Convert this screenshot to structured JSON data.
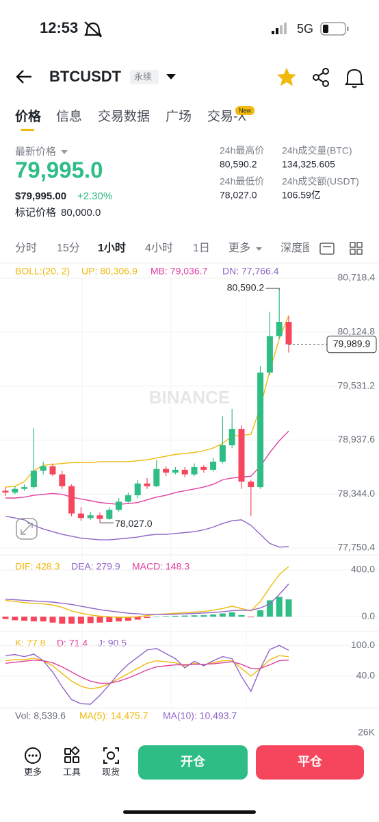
{
  "status": {
    "time": "12:53",
    "network": "5G"
  },
  "header": {
    "symbol": "BTCUSDT",
    "contract": "永续"
  },
  "tabs": {
    "items": [
      "价格",
      "信息",
      "交易数据",
      "广场",
      "交易-X"
    ],
    "badge": "New"
  },
  "ticker": {
    "last_label": "最新价格",
    "last": "79,995.0",
    "last_usd": "$79,995.00",
    "change": "+2.30%",
    "mark_label": "标记价格",
    "mark": "80,000.0",
    "stats": [
      [
        "24h最高价",
        "80,590.2"
      ],
      [
        "24h成交量(BTC)",
        "134,325.605"
      ],
      [
        "24h最低价",
        "78,027.0"
      ],
      [
        "24h成交额(USDT)",
        "106.59亿"
      ]
    ]
  },
  "intervals": [
    "分时",
    "15分",
    "1小时",
    "4小时",
    "1日",
    "更多",
    "深度图"
  ],
  "kline": {
    "type": "candlestick",
    "legend": [
      "BOLL:(20, 2)",
      "UP: 80,306.9",
      "MB: 79,036.7",
      "DN: 77,766.4"
    ],
    "ylim": [
      77750.4,
      80718.4
    ],
    "yticks": [
      {
        "value": 80718.4,
        "label": "80,718.4"
      },
      {
        "value": 80124.8,
        "label": "80,124.8"
      },
      {
        "value": 79531.2,
        "label": "79,531.2"
      },
      {
        "value": 78937.6,
        "label": "78,937.6"
      },
      {
        "value": 78344.0,
        "label": "78,344.0"
      },
      {
        "value": 77750.4,
        "label": "77,750.4"
      }
    ],
    "up_color": "#2ebd85",
    "down_color": "#f6465d",
    "open": [
      78380,
      78360,
      78400,
      78420,
      78600,
      78650,
      78560,
      78430,
      78130,
      78080,
      78110,
      78070,
      78170,
      78260,
      78330,
      78460,
      78430,
      78620,
      78580,
      78610,
      78560,
      78640,
      78610,
      78700,
      78880,
      79060,
      78480,
      78420,
      79680,
      80080,
      80236
    ],
    "high": [
      78420,
      78430,
      78450,
      79070,
      78700,
      78680,
      78600,
      78450,
      78200,
      78150,
      78140,
      78200,
      78300,
      78360,
      78500,
      78520,
      78720,
      78650,
      78640,
      78640,
      78680,
      78660,
      78740,
      79200,
      79280,
      79100,
      78500,
      79750,
      80350,
      80590.2,
      80300
    ],
    "low": [
      78320,
      78340,
      78380,
      78400,
      78560,
      78540,
      78400,
      78100,
      78050,
      78060,
      78027,
      78060,
      78150,
      78240,
      78300,
      78400,
      78420,
      78540,
      78560,
      78530,
      78540,
      78580,
      78590,
      78680,
      78850,
      78400,
      78100,
      78400,
      79650,
      80050,
      79900
    ],
    "close": [
      78360,
      78400,
      78420,
      78600,
      78650,
      78560,
      78430,
      78130,
      78080,
      78110,
      78070,
      78170,
      78260,
      78330,
      78460,
      78430,
      78620,
      78580,
      78610,
      78560,
      78640,
      78610,
      78700,
      78880,
      79060,
      78480,
      78420,
      79680,
      80080,
      80236,
      79989.9
    ],
    "series": [
      {
        "color": "#f0b90b",
        "values": [
          78420,
          78430,
          78480,
          78600,
          78660,
          78670,
          78680,
          78690,
          78690,
          78690,
          78700,
          78700,
          78700,
          78700,
          78710,
          78720,
          78740,
          78760,
          78780,
          78790,
          78800,
          78820,
          78850,
          78900,
          78980,
          78990,
          79000,
          79300,
          79700,
          80050,
          80306.9
        ]
      },
      {
        "color": "#e040a0",
        "values": [
          78300,
          78300,
          78310,
          78330,
          78340,
          78350,
          78340,
          78310,
          78290,
          78270,
          78250,
          78240,
          78230,
          78240,
          78250,
          78280,
          78310,
          78330,
          78360,
          78380,
          78400,
          78420,
          78450,
          78500,
          78520,
          78530,
          78540,
          78650,
          78800,
          78930,
          79036.7
        ]
      },
      {
        "color": "#8f64c8",
        "values": [
          78100,
          78080,
          78060,
          78000,
          77960,
          77930,
          77900,
          77880,
          77860,
          77850,
          77840,
          77840,
          77850,
          77860,
          77870,
          77890,
          77900,
          77900,
          77910,
          77920,
          77930,
          77950,
          77980,
          78020,
          78050,
          78060,
          78000,
          77900,
          77800,
          77760,
          77766.4
        ]
      }
    ],
    "high_mark": {
      "index": 29,
      "value": 80590.2,
      "label": "80,590.2"
    },
    "low_mark": {
      "index": 10,
      "value": 78027.0,
      "label": "78,027.0"
    },
    "last_mark": {
      "value": 79989.9,
      "label": "79,989.9"
    },
    "watermark": "BINANCE"
  },
  "macd": {
    "type": "macd",
    "legend": [
      "DIF: 428.3",
      "DEA: 279.9",
      "MACD: 148.3"
    ],
    "ylim": [
      -80,
      470
    ],
    "yticks": [
      {
        "value": 400,
        "label": "400.0"
      },
      {
        "value": 0,
        "label": "0.0"
      }
    ],
    "series": [
      {
        "color": "#f0b90b",
        "values": [
          140,
          130,
          120,
          115,
          110,
          100,
          80,
          50,
          30,
          15,
          5,
          0,
          -5,
          -5,
          0,
          10,
          20,
          25,
          30,
          35,
          40,
          45,
          55,
          70,
          90,
          70,
          50,
          130,
          250,
          360,
          428.3
        ]
      },
      {
        "color": "#8f64c8",
        "values": [
          150,
          145,
          140,
          135,
          130,
          125,
          115,
          105,
          90,
          75,
          60,
          50,
          40,
          30,
          25,
          20,
          20,
          20,
          22,
          25,
          28,
          32,
          36,
          42,
          52,
          56,
          55,
          75,
          110,
          190,
          279.9
        ]
      }
    ],
    "histogram": [
      -20,
      -30,
      -35,
      -40,
      -40,
      -50,
      -60,
      -60,
      -60,
      -55,
      -50,
      -45,
      -40,
      -35,
      -25,
      -10,
      0,
      5,
      8,
      10,
      12,
      13,
      19,
      28,
      38,
      14,
      -5,
      55,
      140,
      170,
      148.3
    ]
  },
  "kdj": {
    "type": "line",
    "legend": [
      "K: 77.8",
      "D: 71.4",
      "J: 90.5"
    ],
    "ylim": [
      -15,
      115
    ],
    "yticks": [
      {
        "value": 100,
        "label": "100.0"
      },
      {
        "value": 40,
        "label": "40.0"
      }
    ],
    "series": [
      {
        "color": "#f0b90b",
        "values": [
          70,
          72,
          72,
          75,
          70,
          60,
          45,
          30,
          20,
          15,
          18,
          25,
          35,
          45,
          55,
          65,
          70,
          68,
          66,
          60,
          65,
          62,
          66,
          70,
          70,
          55,
          40,
          55,
          72,
          80,
          77.8
        ]
      },
      {
        "color": "#e040a0",
        "values": [
          65,
          67,
          69,
          71,
          70,
          66,
          58,
          48,
          38,
          30,
          26,
          26,
          30,
          36,
          44,
          52,
          58,
          60,
          62,
          62,
          63,
          63,
          64,
          66,
          68,
          63,
          55,
          55,
          62,
          70,
          71.4
        ]
      },
      {
        "color": "#8f64c8",
        "values": [
          80,
          82,
          78,
          83,
          70,
          48,
          19,
          -6,
          -14,
          -15,
          2,
          23,
          45,
          63,
          77,
          91,
          94,
          84,
          74,
          56,
          69,
          60,
          70,
          78,
          74,
          39,
          10,
          55,
          92,
          100,
          90.5
        ]
      }
    ]
  },
  "volume": {
    "legend": [
      "Vol: 8,539.6",
      "MA(5): 14,475.7",
      "MA(10): 10,493.7"
    ],
    "tick": "26K"
  },
  "toolbar": {
    "items": [
      "更多",
      "工具",
      "现货"
    ],
    "open": "开仓",
    "close": "平仓"
  }
}
